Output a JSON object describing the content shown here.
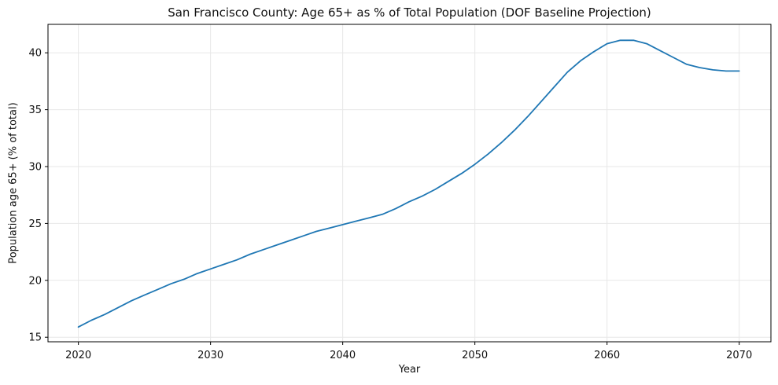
{
  "chart_data": {
    "type": "line",
    "title": "San Francisco County: Age 65+ as % of Total Population (DOF Baseline Projection)",
    "xlabel": "Year",
    "ylabel": "Population age 65+ (% of total)",
    "x": [
      2020,
      2021,
      2022,
      2023,
      2024,
      2025,
      2026,
      2027,
      2028,
      2029,
      2030,
      2031,
      2032,
      2033,
      2034,
      2035,
      2036,
      2037,
      2038,
      2039,
      2040,
      2041,
      2042,
      2043,
      2044,
      2045,
      2046,
      2047,
      2048,
      2049,
      2050,
      2051,
      2052,
      2053,
      2054,
      2055,
      2056,
      2057,
      2058,
      2059,
      2060,
      2061,
      2062,
      2063,
      2064,
      2065,
      2066,
      2067,
      2068,
      2069,
      2070
    ],
    "values": [
      15.9,
      16.5,
      17.0,
      17.6,
      18.2,
      18.7,
      19.2,
      19.7,
      20.1,
      20.6,
      21.0,
      21.4,
      21.8,
      22.3,
      22.7,
      23.1,
      23.5,
      23.9,
      24.3,
      24.6,
      24.9,
      25.2,
      25.5,
      25.8,
      26.3,
      26.9,
      27.4,
      28.0,
      28.7,
      29.4,
      30.2,
      31.1,
      32.1,
      33.2,
      34.4,
      35.7,
      37.0,
      38.3,
      39.3,
      40.1,
      40.8,
      41.1,
      41.1,
      40.8,
      40.2,
      39.6,
      39.0,
      38.7,
      38.5,
      38.4,
      38.4
    ],
    "xticks": [
      2020,
      2030,
      2040,
      2050,
      2060,
      2070
    ],
    "yticks": [
      15,
      20,
      25,
      30,
      35,
      40
    ],
    "xlim": [
      2017.7,
      2072.4
    ],
    "ylim": [
      14.6,
      42.5
    ],
    "grid": true,
    "legend": false,
    "line_color": "#1f77b4",
    "background": "#ffffff",
    "series_name": "DOF baseline projection"
  }
}
